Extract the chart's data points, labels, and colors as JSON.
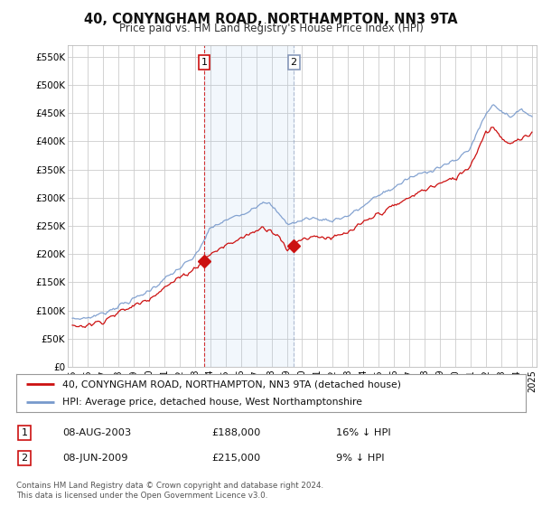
{
  "title": "40, CONYNGHAM ROAD, NORTHAMPTON, NN3 9TA",
  "subtitle": "Price paid vs. HM Land Registry's House Price Index (HPI)",
  "ylabel_ticks": [
    "£0",
    "£50K",
    "£100K",
    "£150K",
    "£200K",
    "£250K",
    "£300K",
    "£350K",
    "£400K",
    "£450K",
    "£500K",
    "£550K"
  ],
  "ytick_values": [
    0,
    50000,
    100000,
    150000,
    200000,
    250000,
    300000,
    350000,
    400000,
    450000,
    500000,
    550000
  ],
  "ylim": [
    0,
    570000
  ],
  "xlim_start": 1994.7,
  "xlim_end": 2025.3,
  "sale1": {
    "date_num": 2003.6,
    "price": 188000,
    "label": "1"
  },
  "sale2": {
    "date_num": 2009.45,
    "price": 215000,
    "label": "2"
  },
  "vline1_color": "#cc0000",
  "vline2_color": "#8899bb",
  "shade_color": "#ddeeff",
  "hpi_line_color": "#7799cc",
  "price_line_color": "#cc1111",
  "legend_line1": "40, CONYNGHAM ROAD, NORTHAMPTON, NN3 9TA (detached house)",
  "legend_line2": "HPI: Average price, detached house, West Northamptonshire",
  "table_row1": [
    "1",
    "08-AUG-2003",
    "£188,000",
    "16% ↓ HPI"
  ],
  "table_row2": [
    "2",
    "08-JUN-2009",
    "£215,000",
    "9% ↓ HPI"
  ],
  "footnote": "Contains HM Land Registry data © Crown copyright and database right 2024.\nThis data is licensed under the Open Government Licence v3.0.",
  "background_color": "#ffffff",
  "grid_color": "#cccccc",
  "chart_bg": "#ffffff"
}
